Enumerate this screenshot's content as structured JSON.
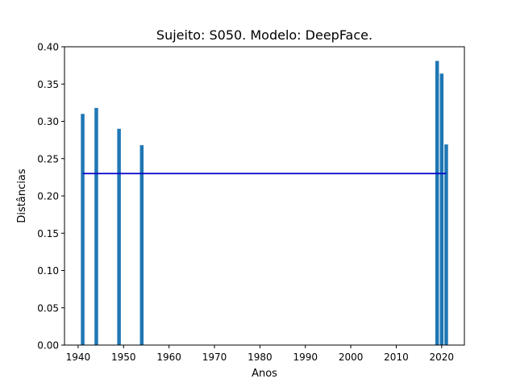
{
  "chart_data": {
    "type": "bar",
    "title": "Sujeito: S050. Modelo: DeepFace.",
    "xlabel": "Anos",
    "ylabel": "Distâncias",
    "xlim": [
      1937.0,
      2025.0
    ],
    "ylim": [
      0.0,
      0.4
    ],
    "xticks": [
      1940,
      1950,
      1960,
      1970,
      1980,
      1990,
      2000,
      2010,
      2020
    ],
    "yticks": [
      0.0,
      0.05,
      0.1,
      0.15,
      0.2,
      0.25,
      0.3,
      0.35,
      0.4
    ],
    "xtick_labels": [
      "1940",
      "1950",
      "1960",
      "1970",
      "1980",
      "1990",
      "2000",
      "2010",
      "2020"
    ],
    "ytick_labels": [
      "0.00",
      "0.05",
      "0.10",
      "0.15",
      "0.20",
      "0.25",
      "0.30",
      "0.35",
      "0.40"
    ],
    "grid": false,
    "bar_width_years": 0.8,
    "bar_color": "#1f77b4",
    "bars": [
      {
        "x": 1941,
        "y": 0.31
      },
      {
        "x": 1944,
        "y": 0.318
      },
      {
        "x": 1949,
        "y": 0.29
      },
      {
        "x": 1954,
        "y": 0.268
      },
      {
        "x": 2019,
        "y": 0.381
      },
      {
        "x": 2020,
        "y": 0.364
      },
      {
        "x": 2021,
        "y": 0.269
      }
    ],
    "reference_line": {
      "x_start": 1941,
      "x_end": 2021,
      "y": 0.23,
      "color": "#0000cc"
    }
  }
}
